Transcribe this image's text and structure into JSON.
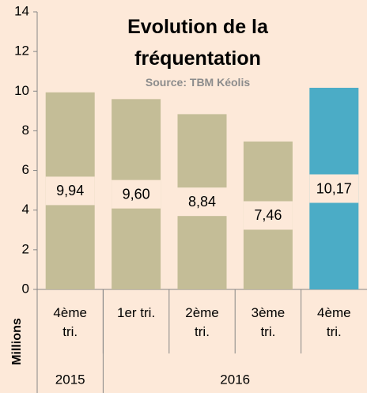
{
  "chart_data": {
    "type": "bar",
    "title": "Evolution de la fréquentation",
    "subtitle": "Source: TBM Kéolis",
    "ylabel": "Millions",
    "categories": [
      "4ème tri.",
      "1er tri.",
      "2ème tri.",
      "3ème tri.",
      "4ème tri."
    ],
    "groups": [
      {
        "label": "2015",
        "span": 1
      },
      {
        "label": "2016",
        "span": 4
      }
    ],
    "values": [
      9.94,
      9.6,
      8.84,
      7.46,
      10.17
    ],
    "value_labels": [
      "9,94",
      "9,60",
      "8,84",
      "7,46",
      "10,17"
    ],
    "colors": [
      "#c4bd97",
      "#c4bd97",
      "#c4bd97",
      "#c4bd97",
      "#4bacc6"
    ],
    "ylim": [
      0,
      14
    ],
    "yticks": [
      0,
      2,
      4,
      6,
      8,
      10,
      12,
      14
    ]
  }
}
